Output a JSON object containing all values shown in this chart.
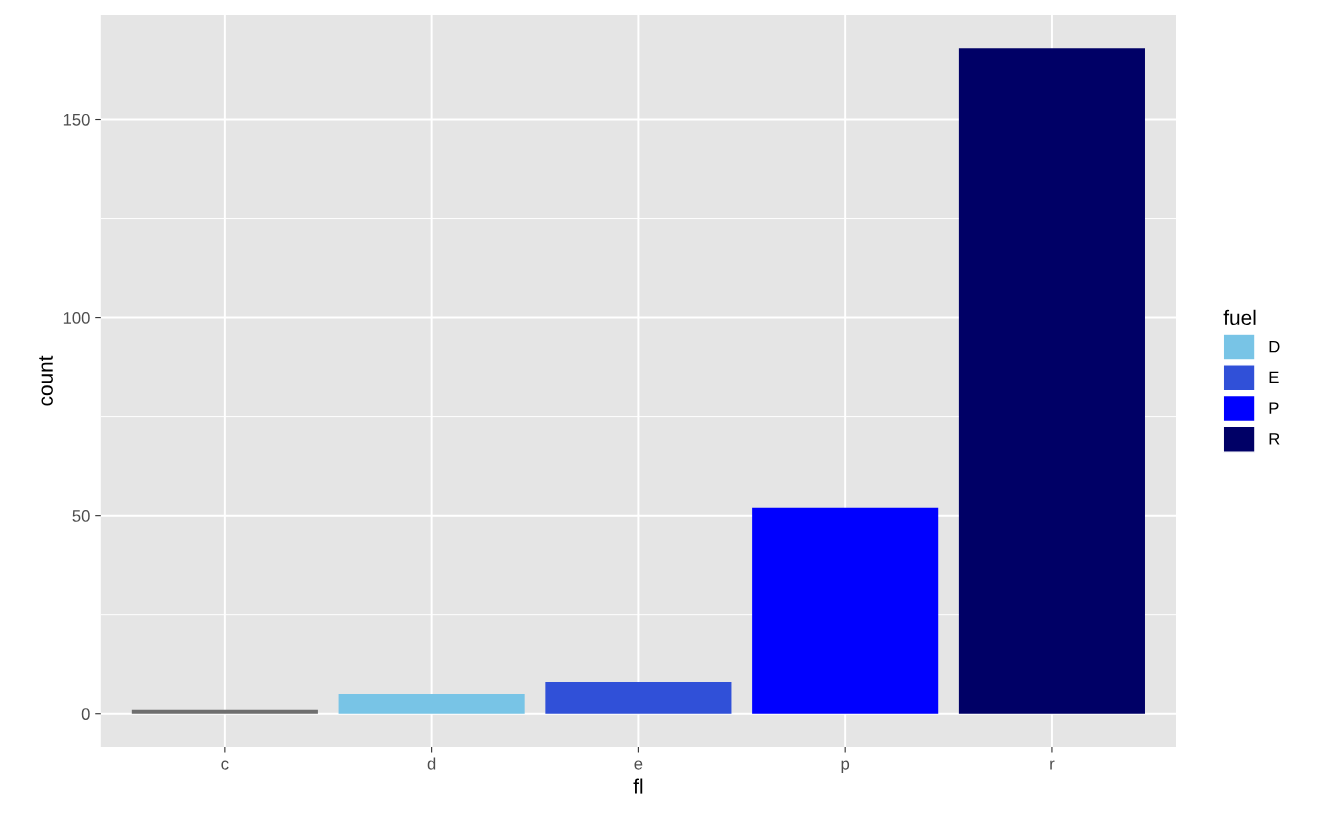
{
  "chart_data": {
    "type": "bar",
    "xlabel": "fl",
    "ylabel": "count",
    "legend_title": "fuel",
    "categories": [
      "c",
      "d",
      "e",
      "p",
      "r"
    ],
    "series": [
      {
        "color": "#6e6e6e",
        "values": [
          1,
          null,
          null,
          null,
          null
        ]
      },
      {
        "name": "D",
        "color": "#78c4e6",
        "values": [
          null,
          5,
          null,
          null,
          null
        ]
      },
      {
        "name": "E",
        "color": "#3050d8",
        "values": [
          null,
          null,
          8,
          null,
          null
        ]
      },
      {
        "name": "P",
        "color": "#0000ff",
        "values": [
          null,
          null,
          null,
          52,
          null
        ]
      },
      {
        "name": "R",
        "color": "#000066",
        "values": [
          null,
          null,
          null,
          null,
          168
        ]
      }
    ],
    "ylim": [
      -8.4,
      176.4
    ],
    "yticks": [
      0,
      50,
      100,
      150
    ],
    "grid": true,
    "legend": "right"
  }
}
